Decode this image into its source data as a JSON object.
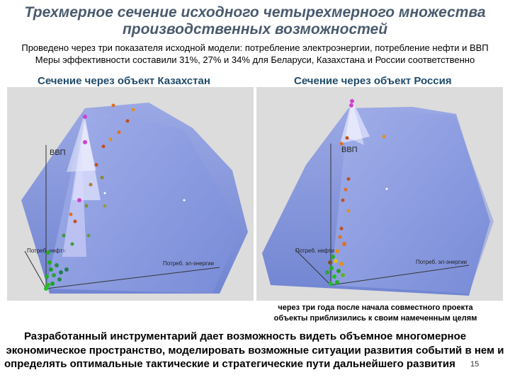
{
  "title_line1": "Трехмерное сечение исходного четырехмерного множества",
  "title_line2": "производственных возможностей",
  "subtitle_line1": "Проведено через три показателя исходной модели: потребление электроэнергии, потребление нефти и ВВП",
  "subtitle_line2": "Меры эффективности составили 31%, 27% и 34% для Беларуси, Казахстана и России соответственно",
  "left_panel": {
    "title": "Сечение через объект Казахстан",
    "axis_gdp": "ВВП",
    "axis_oil": "Потреб. нефти",
    "axis_elec": "Потреб. эл-энергии"
  },
  "right_panel": {
    "title": "Сечение через объект Россия",
    "axis_gdp": "ВВП",
    "axis_oil": "Потреб. нефти",
    "axis_elec": "Потреб. эл-энергии"
  },
  "caption_line1": "через три года после начала совместного проекта",
  "caption_line2": "объекты приблизились к своим намеченным целям",
  "conclusion_line1": "Разработанный инструментарий дает возможность видеть объемное многомерное",
  "conclusion_line2": "экономическое пространство, моделировать возможные ситуации развития событий в нем и",
  "conclusion_line3": "определять оптимальные тактические и стратегические пути дальнейшего развития",
  "page_number": "15",
  "colors": {
    "title": "#4a5a6e",
    "panel_title": "#1f4a6a",
    "surface": "#6e84d8",
    "background": "#dcdcdc"
  }
}
